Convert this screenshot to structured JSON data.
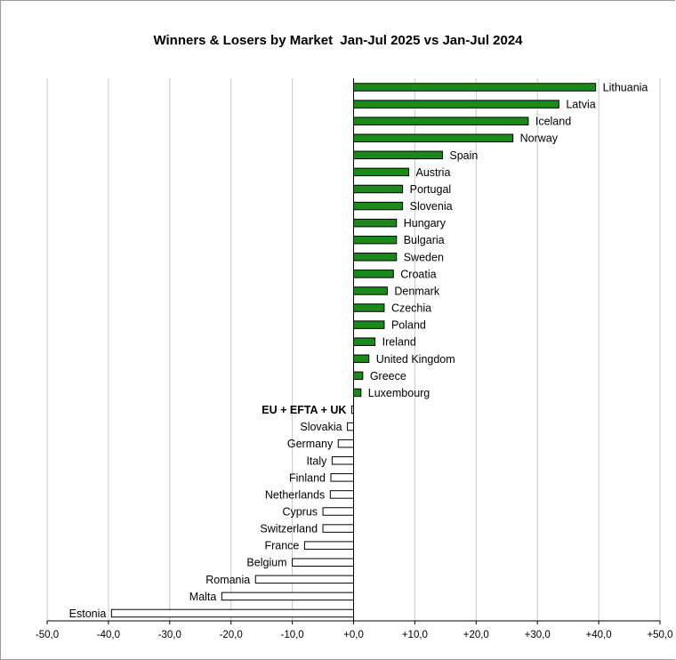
{
  "chart_data": {
    "type": "bar",
    "orientation": "horizontal",
    "title": "Winners & Losers by Market  Jan-Jul 2025 vs Jan-Jul 2024",
    "xlim": [
      -50,
      50
    ],
    "x_ticks": [
      "-50,0",
      "-40,0",
      "-30,0",
      "-20,0",
      "-10,0",
      "+0,0",
      "+10,0",
      "+20,0",
      "+30,0",
      "+40,0",
      "+50,0"
    ],
    "grid": "vertical",
    "colors": {
      "positive": "#1a8a1a",
      "negative": "#ffffff",
      "edge": "#000000",
      "grid": "#c8c8c8"
    },
    "categories": [
      "Lithuania",
      "Latvia",
      "Iceland",
      "Norway",
      "Spain",
      "Austria",
      "Portugal",
      "Slovenia",
      "Hungary",
      "Bulgaria",
      "Sweden",
      "Croatia",
      "Denmark",
      "Czechia",
      "Poland",
      "Ireland",
      "United Kingdom",
      "Greece",
      "Luxembourg",
      "EU + EFTA + UK",
      "Slovakia",
      "Germany",
      "Italy",
      "Finland",
      "Netherlands",
      "Cyprus",
      "Switzerland",
      "France",
      "Belgium",
      "Romania",
      "Malta",
      "Estonia"
    ],
    "values": [
      39.5,
      33.5,
      28.5,
      26.0,
      14.5,
      9.0,
      8.0,
      8.0,
      7.0,
      7.0,
      7.0,
      6.5,
      5.5,
      5.0,
      5.0,
      3.5,
      2.5,
      1.5,
      1.2,
      -0.3,
      -1.0,
      -2.5,
      -3.5,
      -3.7,
      -3.8,
      -5.0,
      -5.0,
      -8.0,
      -10.0,
      -16.0,
      -21.5,
      -39.5
    ],
    "bold_categories": [
      "EU + EFTA + UK"
    ]
  }
}
